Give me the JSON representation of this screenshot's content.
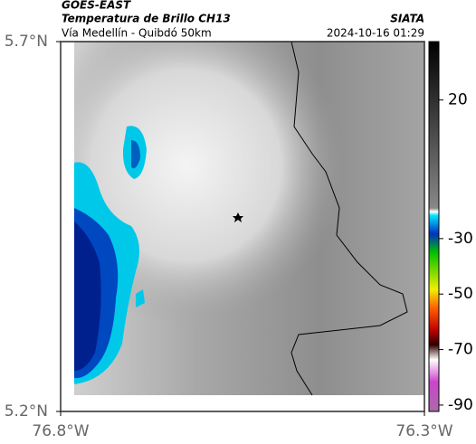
{
  "header": {
    "source": "GOES-EAST",
    "title": "Temperatura de Brillo CH13",
    "brand": "SIATA",
    "subtitle": "Vía Medellín - Quibdó 50km",
    "datetime": "2024-10-16 01:29"
  },
  "map": {
    "xlim": [
      -76.8,
      -76.3
    ],
    "ylim": [
      5.2,
      5.7
    ],
    "xticks": [
      {
        "value": -76.8,
        "label": "76.8°W"
      },
      {
        "value": -76.3,
        "label": "76.3°W"
      }
    ],
    "yticks": [
      {
        "value": 5.2,
        "label": "5.2°N"
      },
      {
        "value": 5.7,
        "label": "5.7°N"
      }
    ]
  },
  "colorbar": {
    "lim": [
      -92.3,
      41
    ],
    "ticks": [
      20,
      -30,
      -50,
      -70,
      -90
    ]
  }
}
